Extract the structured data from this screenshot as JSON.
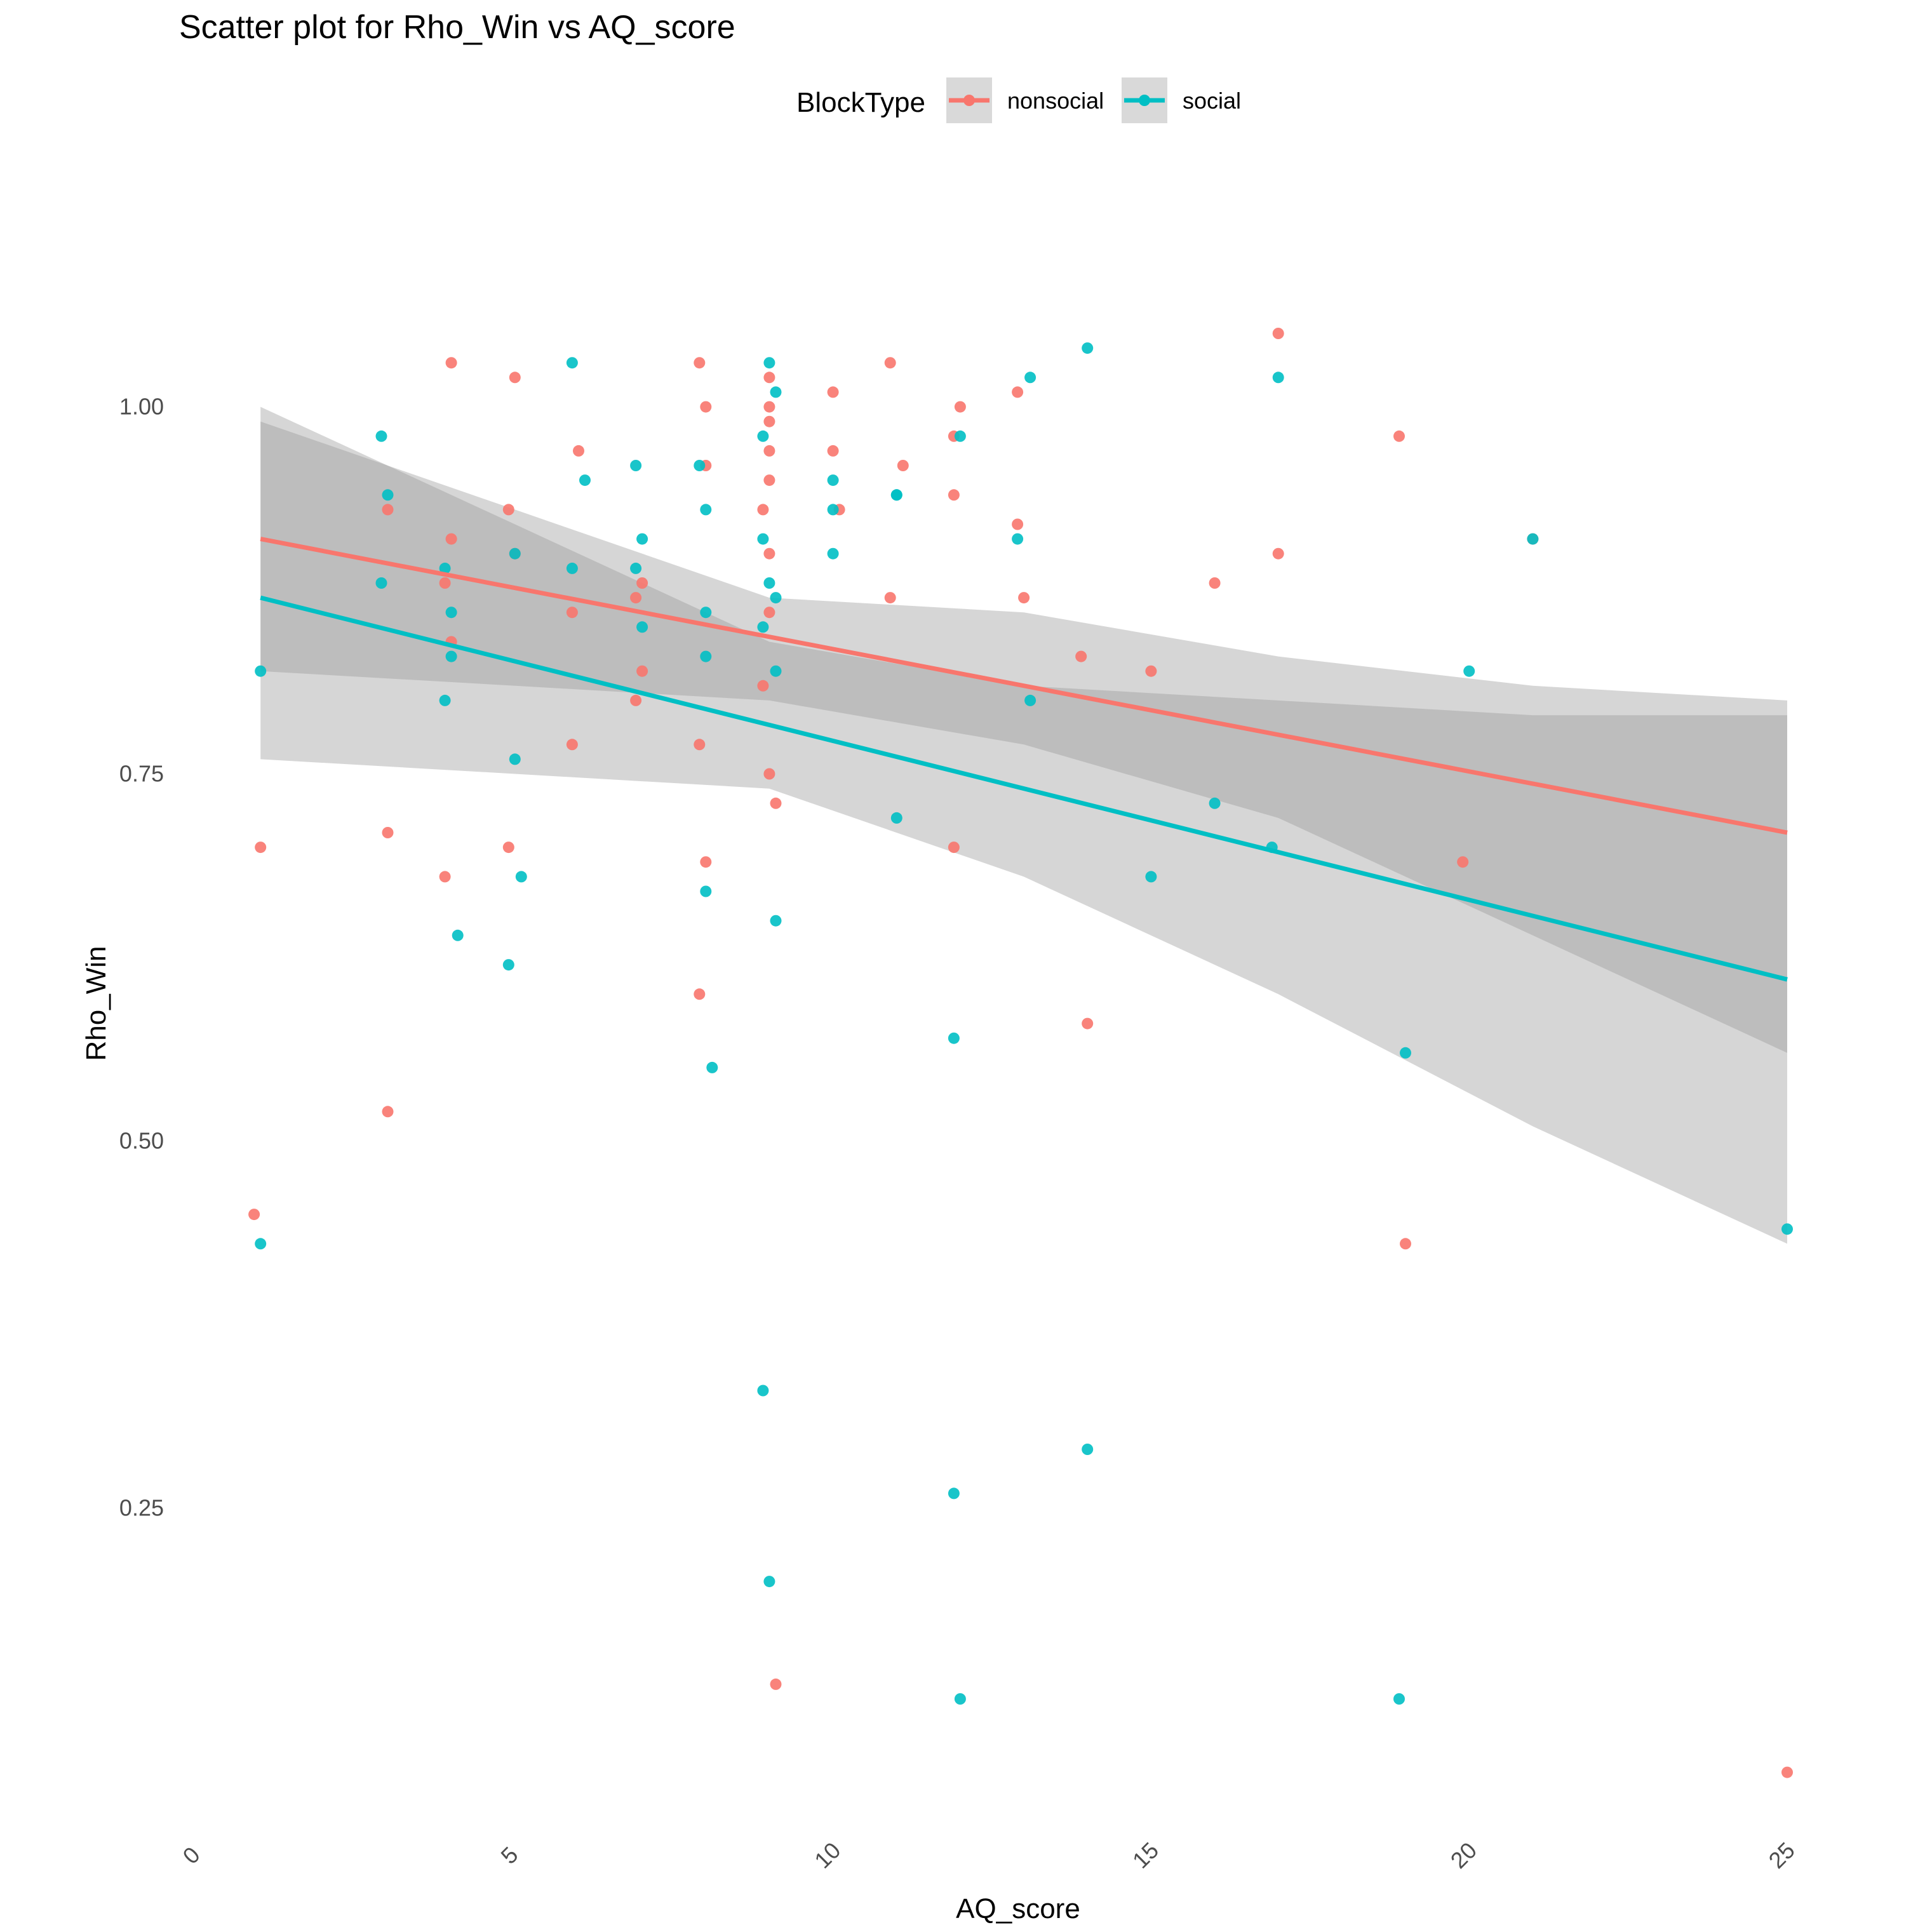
{
  "chart_data": {
    "type": "scatter",
    "title": "Scatter plot for Rho_Win vs AQ_score",
    "xlabel": "AQ_score",
    "ylabel": "Rho_Win",
    "xlim": [
      0,
      25
    ],
    "ylim": [
      0.04,
      1.13
    ],
    "x_ticks": [
      "0",
      "5",
      "10",
      "15",
      "20",
      "25"
    ],
    "y_ticks": [
      "0.25",
      "0.50",
      "0.75",
      "1.00"
    ],
    "grid": false,
    "legend": {
      "title": "BlockType",
      "position": "top"
    },
    "series": [
      {
        "name": "nonsocial",
        "color": "#F8766D",
        "points": [
          [
            0.9,
            0.45
          ],
          [
            1.0,
            0.7
          ],
          [
            3.0,
            0.93
          ],
          [
            3.0,
            0.52
          ],
          [
            3.0,
            0.71
          ],
          [
            3.9,
            0.68
          ],
          [
            3.9,
            0.88
          ],
          [
            4.0,
            0.91
          ],
          [
            4.0,
            0.84
          ],
          [
            4.0,
            1.03
          ],
          [
            4.9,
            0.93
          ],
          [
            4.9,
            0.7
          ],
          [
            5.0,
            0.9
          ],
          [
            5.0,
            1.02
          ],
          [
            5.9,
            0.86
          ],
          [
            5.9,
            0.77
          ],
          [
            6.0,
            0.97
          ],
          [
            6.9,
            0.87
          ],
          [
            6.9,
            0.8
          ],
          [
            7.0,
            0.88
          ],
          [
            7.0,
            0.82
          ],
          [
            7.9,
            1.03
          ],
          [
            7.9,
            0.77
          ],
          [
            7.9,
            0.6
          ],
          [
            8.0,
            1.0
          ],
          [
            8.0,
            0.96
          ],
          [
            8.0,
            0.69
          ],
          [
            8.9,
            0.93
          ],
          [
            8.9,
            0.81
          ],
          [
            9.0,
            1.02
          ],
          [
            9.0,
            0.97
          ],
          [
            9.0,
            0.95
          ],
          [
            9.0,
            0.86
          ],
          [
            9.0,
            0.75
          ],
          [
            9.0,
            1.0
          ],
          [
            9.0,
            0.99
          ],
          [
            9.0,
            0.9
          ],
          [
            9.1,
            0.73
          ],
          [
            9.1,
            0.13
          ],
          [
            10.0,
            1.01
          ],
          [
            10.0,
            0.97
          ],
          [
            10.1,
            0.93
          ],
          [
            10.9,
            1.03
          ],
          [
            10.9,
            0.87
          ],
          [
            11.1,
            0.96
          ],
          [
            11.9,
            0.98
          ],
          [
            11.9,
            0.94
          ],
          [
            11.9,
            0.7
          ],
          [
            12.0,
            1.0
          ],
          [
            12.9,
            1.01
          ],
          [
            12.9,
            0.92
          ],
          [
            13.0,
            0.87
          ],
          [
            13.9,
            0.83
          ],
          [
            14.0,
            0.58
          ],
          [
            15.0,
            0.82
          ],
          [
            16.0,
            0.88
          ],
          [
            17.0,
            1.05
          ],
          [
            17.0,
            0.9
          ],
          [
            18.9,
            0.98
          ],
          [
            19.0,
            0.43
          ],
          [
            19.9,
            0.69
          ],
          [
            21.0,
            0.91
          ],
          [
            25.0,
            0.07
          ]
        ],
        "trend": {
          "start": [
            1.0,
            0.91
          ],
          "end": [
            25.0,
            0.71
          ]
        },
        "ci_band": {
          "x": [
            1,
            5,
            9,
            13,
            17,
            21,
            25
          ],
          "lower": [
            0.82,
            0.81,
            0.8,
            0.77,
            0.72,
            0.64,
            0.56
          ],
          "upper": [
            0.99,
            0.93,
            0.87,
            0.86,
            0.83,
            0.81,
            0.8
          ]
        }
      },
      {
        "name": "social",
        "color": "#00BFC4",
        "points": [
          [
            1.0,
            0.82
          ],
          [
            1.0,
            0.43
          ],
          [
            2.9,
            0.98
          ],
          [
            2.9,
            0.88
          ],
          [
            3.0,
            0.94
          ],
          [
            3.9,
            0.89
          ],
          [
            3.9,
            0.8
          ],
          [
            4.0,
            0.86
          ],
          [
            4.0,
            0.83
          ],
          [
            4.1,
            0.64
          ],
          [
            4.9,
            0.62
          ],
          [
            5.0,
            0.9
          ],
          [
            5.0,
            0.76
          ],
          [
            5.1,
            0.68
          ],
          [
            5.9,
            1.03
          ],
          [
            5.9,
            0.89
          ],
          [
            6.1,
            0.95
          ],
          [
            6.9,
            0.96
          ],
          [
            6.9,
            0.89
          ],
          [
            7.0,
            0.91
          ],
          [
            7.0,
            0.85
          ],
          [
            7.9,
            0.96
          ],
          [
            8.0,
            0.93
          ],
          [
            8.0,
            0.86
          ],
          [
            8.0,
            0.83
          ],
          [
            8.0,
            0.67
          ],
          [
            8.1,
            0.55
          ],
          [
            8.9,
            0.98
          ],
          [
            8.9,
            0.91
          ],
          [
            8.9,
            0.85
          ],
          [
            8.9,
            0.33
          ],
          [
            9.0,
            0.88
          ],
          [
            9.0,
            0.2
          ],
          [
            9.0,
            1.03
          ],
          [
            9.1,
            1.01
          ],
          [
            9.1,
            0.87
          ],
          [
            9.1,
            0.82
          ],
          [
            9.1,
            0.65
          ],
          [
            10.0,
            0.95
          ],
          [
            10.0,
            0.93
          ],
          [
            10.0,
            0.9
          ],
          [
            11.0,
            0.94
          ],
          [
            11.0,
            0.94
          ],
          [
            11.0,
            0.72
          ],
          [
            11.9,
            0.57
          ],
          [
            11.9,
            0.26
          ],
          [
            12.0,
            0.98
          ],
          [
            12.0,
            0.12
          ],
          [
            12.9,
            0.91
          ],
          [
            13.1,
            1.02
          ],
          [
            13.1,
            0.8
          ],
          [
            14.0,
            1.04
          ],
          [
            14.0,
            0.29
          ],
          [
            15.0,
            0.68
          ],
          [
            16.0,
            0.73
          ],
          [
            16.9,
            0.7
          ],
          [
            17.0,
            1.02
          ],
          [
            18.9,
            0.12
          ],
          [
            19.0,
            0.56
          ],
          [
            20.0,
            0.82
          ],
          [
            21.0,
            0.91
          ],
          [
            25.0,
            0.44
          ]
        ],
        "trend": {
          "start": [
            1.0,
            0.87
          ],
          "end": [
            25.0,
            0.61
          ]
        },
        "ci_band": {
          "x": [
            1,
            5,
            9,
            13,
            17,
            21,
            25
          ],
          "lower": [
            0.76,
            0.75,
            0.74,
            0.68,
            0.6,
            0.51,
            0.43
          ],
          "upper": [
            1.0,
            0.92,
            0.84,
            0.81,
            0.8,
            0.79,
            0.79
          ]
        }
      }
    ]
  }
}
